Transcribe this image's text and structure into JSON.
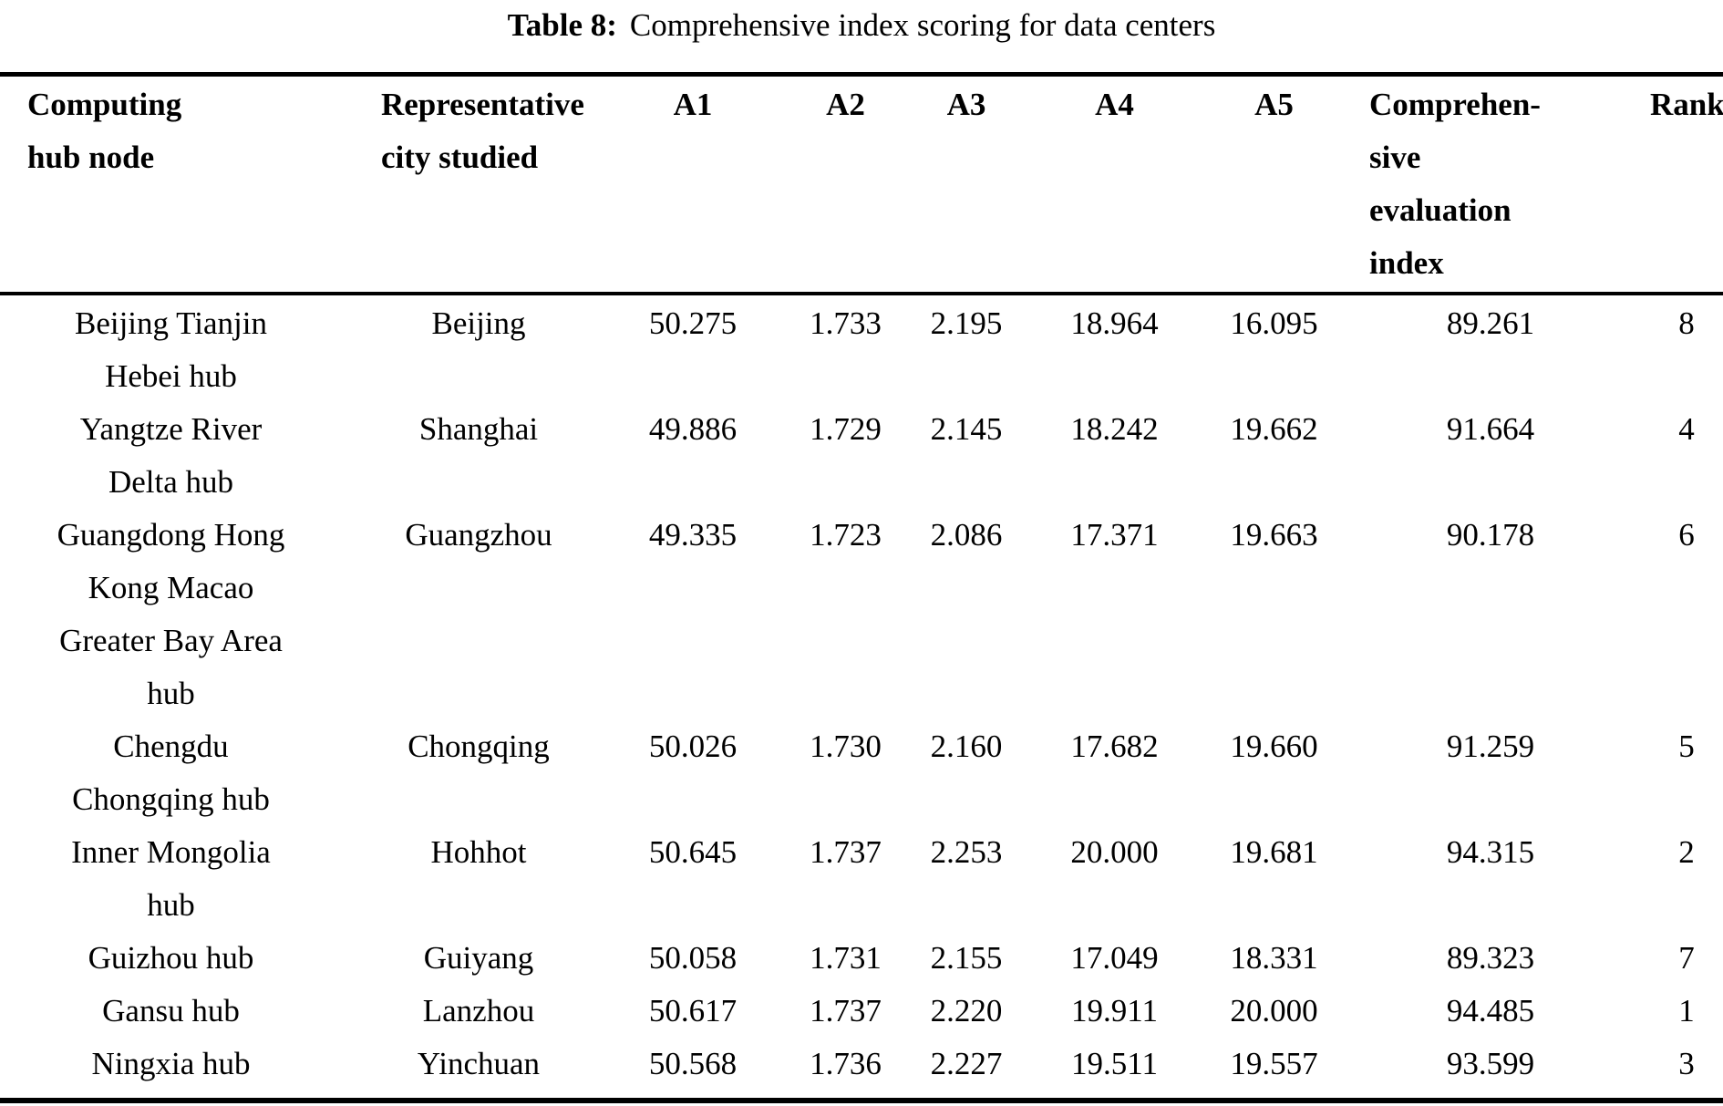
{
  "caption": {
    "label": "Table 8:",
    "text": "Comprehensive index scoring for data centers"
  },
  "colors": {
    "text": "#000000",
    "background": "#ffffff",
    "rule": "#000000"
  },
  "table": {
    "headers": {
      "hub": "Computing\nhub node",
      "city": "Representative\ncity studied",
      "a1": "A1",
      "a2": "A2",
      "a3": "A3",
      "a4": "A4",
      "a5": "A5",
      "index": "Comprehen-\nsive\nevaluation\nindex",
      "rank": "Rank"
    },
    "rows": [
      {
        "hub": "Beijing Tianjin\nHebei hub",
        "city": "Beijing",
        "a1": "50.275",
        "a2": "1.733",
        "a3": "2.195",
        "a4": "18.964",
        "a5": "16.095",
        "index": "89.261",
        "rank": "8"
      },
      {
        "hub": "Yangtze River\nDelta hub",
        "city": "Shanghai",
        "a1": "49.886",
        "a2": "1.729",
        "a3": "2.145",
        "a4": "18.242",
        "a5": "19.662",
        "index": "91.664",
        "rank": "4"
      },
      {
        "hub": "Guangdong Hong\nKong Macao\nGreater Bay Area\nhub",
        "city": "Guangzhou",
        "a1": "49.335",
        "a2": "1.723",
        "a3": "2.086",
        "a4": "17.371",
        "a5": "19.663",
        "index": "90.178",
        "rank": "6"
      },
      {
        "hub": "Chengdu\nChongqing hub",
        "city": "Chongqing",
        "a1": "50.026",
        "a2": "1.730",
        "a3": "2.160",
        "a4": "17.682",
        "a5": "19.660",
        "index": "91.259",
        "rank": "5"
      },
      {
        "hub": "Inner Mongolia\nhub",
        "city": "Hohhot",
        "a1": "50.645",
        "a2": "1.737",
        "a3": "2.253",
        "a4": "20.000",
        "a5": "19.681",
        "index": "94.315",
        "rank": "2"
      },
      {
        "hub": "Guizhou hub",
        "city": "Guiyang",
        "a1": "50.058",
        "a2": "1.731",
        "a3": "2.155",
        "a4": "17.049",
        "a5": "18.331",
        "index": "89.323",
        "rank": "7"
      },
      {
        "hub": "Gansu hub",
        "city": "Lanzhou",
        "a1": "50.617",
        "a2": "1.737",
        "a3": "2.220",
        "a4": "19.911",
        "a5": "20.000",
        "index": "94.485",
        "rank": "1"
      },
      {
        "hub": "Ningxia hub",
        "city": "Yinchuan",
        "a1": "50.568",
        "a2": "1.736",
        "a3": "2.227",
        "a4": "19.511",
        "a5": "19.557",
        "index": "93.599",
        "rank": "3"
      }
    ]
  }
}
